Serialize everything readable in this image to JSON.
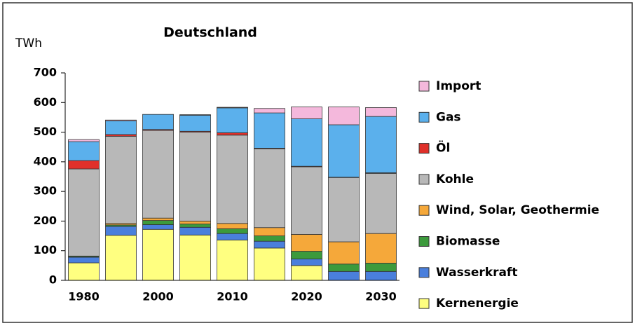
{
  "chart_data": {
    "type": "stacked_bar",
    "title": "Deutschland",
    "y_label": "TWh",
    "categories": [
      "1980",
      null,
      "2000",
      null,
      "2010",
      null,
      "2020",
      null,
      "2030"
    ],
    "series": [
      {
        "name": "Kernenergie",
        "color": "#ffff80",
        "values": [
          59,
          152,
          172,
          153,
          136,
          109,
          50,
          0,
          0
        ]
      },
      {
        "name": "Wasserkraft",
        "color": "#4a7fdc",
        "values": [
          19,
          30,
          16,
          26,
          22,
          23,
          22,
          30,
          30
        ]
      },
      {
        "name": "Biomasse",
        "color": "#3c9a3c",
        "values": [
          3,
          5,
          14,
          11,
          16,
          18,
          26,
          25,
          28
        ]
      },
      {
        "name": "Wind, Solar, Geothermie",
        "color": "#f5a83a",
        "values": [
          1,
          5,
          8,
          10,
          18,
          28,
          57,
          75,
          100
        ]
      },
      {
        "name": "Kohle",
        "color": "#b8b8b8",
        "values": [
          294,
          294,
          296,
          300,
          298,
          266,
          228,
          217,
          203
        ]
      },
      {
        "name": "Öl",
        "color": "#e0302a",
        "values": [
          28,
          6,
          3,
          3,
          8,
          2,
          2,
          1,
          2
        ]
      },
      {
        "name": "Gas",
        "color": "#5bb0ec",
        "values": [
          64,
          46,
          51,
          54,
          84,
          119,
          160,
          177,
          190
        ]
      },
      {
        "name": "Import",
        "color": "#f4b8dc",
        "values": [
          7,
          3,
          0,
          2,
          2,
          15,
          40,
          60,
          30
        ]
      }
    ],
    "ylim": [
      0,
      700
    ],
    "yticks": [
      0,
      100,
      200,
      300,
      400,
      500,
      600,
      700
    ],
    "grid": false,
    "legend": "right"
  }
}
